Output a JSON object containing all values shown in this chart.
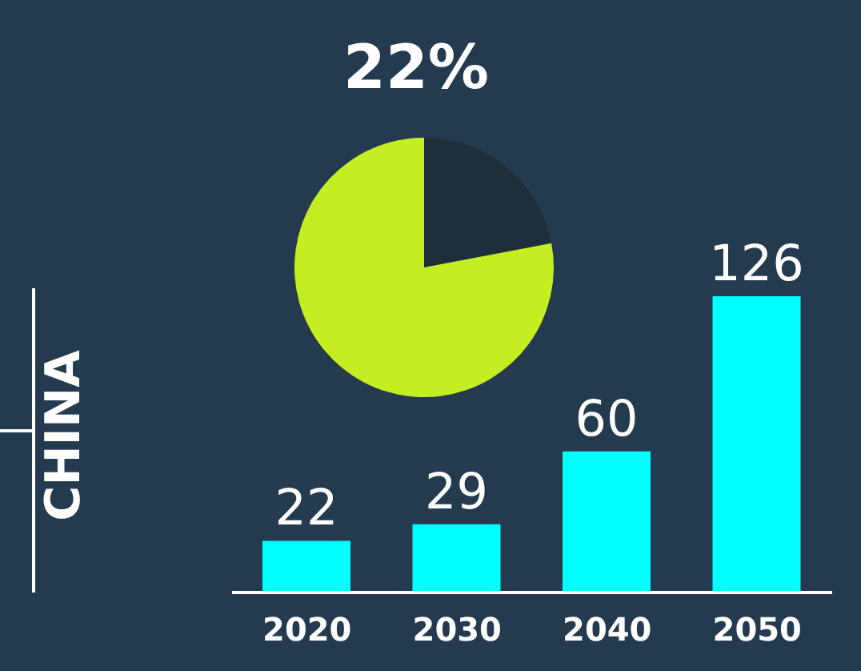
{
  "chart_data": [
    {
      "type": "pie",
      "title": "22%",
      "categories": [
        null,
        null
      ],
      "values": [
        22,
        78
      ],
      "colors": [
        "#1e2f3b",
        "#c5ee22"
      ]
    },
    {
      "type": "bar",
      "ylabel": "CHINA",
      "categories": [
        "2020",
        "2030",
        "2040",
        "2050"
      ],
      "values": [
        22,
        29,
        60,
        126
      ],
      "color": "#00ffff",
      "data_labels": true
    }
  ]
}
